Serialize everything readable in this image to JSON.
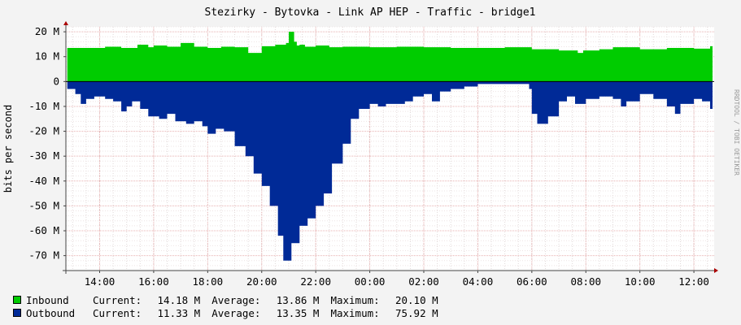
{
  "chart_data": {
    "type": "area",
    "title": "Stezirky - Bytovka - Link AP HEP - Traffic - bridge1",
    "ylabel": "bits per second",
    "watermark": "RRDTOOL / TOBI OETIKER",
    "ylim": [
      -76,
      22
    ],
    "yticks": [
      {
        "v": 20,
        "label": "20 M"
      },
      {
        "v": 10,
        "label": "10 M"
      },
      {
        "v": 0,
        "label": "0"
      },
      {
        "v": -10,
        "label": "-10 M"
      },
      {
        "v": -20,
        "label": "-20 M"
      },
      {
        "v": -30,
        "label": "-30 M"
      },
      {
        "v": -40,
        "label": "-40 M"
      },
      {
        "v": -50,
        "label": "-50 M"
      },
      {
        "v": -60,
        "label": "-60 M"
      },
      {
        "v": -70,
        "label": "-70 M"
      }
    ],
    "xlim": [
      12.75,
      36.75
    ],
    "xticks": [
      {
        "v": 14,
        "label": "14:00"
      },
      {
        "v": 16,
        "label": "16:00"
      },
      {
        "v": 18,
        "label": "18:00"
      },
      {
        "v": 20,
        "label": "20:00"
      },
      {
        "v": 22,
        "label": "22:00"
      },
      {
        "v": 24,
        "label": "00:00"
      },
      {
        "v": 26,
        "label": "02:00"
      },
      {
        "v": 28,
        "label": "04:00"
      },
      {
        "v": 30,
        "label": "06:00"
      },
      {
        "v": 32,
        "label": "08:00"
      },
      {
        "v": 34,
        "label": "10:00"
      },
      {
        "v": 36,
        "label": "12:00"
      }
    ],
    "series": [
      {
        "name": "Inbound",
        "color": "#00cc00",
        "x": [
          12.8,
          13.5,
          14.2,
          14.8,
          15.4,
          15.8,
          16.0,
          16.5,
          17.0,
          17.5,
          18.0,
          18.5,
          19.0,
          19.5,
          20.0,
          20.5,
          20.9,
          21.0,
          21.2,
          21.3,
          21.4,
          21.6,
          22.0,
          22.5,
          23.0,
          24.0,
          25.0,
          26.0,
          27.0,
          28.0,
          29.0,
          30.0,
          31.0,
          31.7,
          31.9,
          32.5,
          33.0,
          34.0,
          35.0,
          36.0,
          36.6
        ],
        "values": [
          13.5,
          13.5,
          14.0,
          13.5,
          14.8,
          13.8,
          14.5,
          14.0,
          15.5,
          14.0,
          13.5,
          14.0,
          13.8,
          11.5,
          14.2,
          14.8,
          15.5,
          20.0,
          16.0,
          14.5,
          14.8,
          14.0,
          14.5,
          13.8,
          14.0,
          13.8,
          14.0,
          13.8,
          13.5,
          13.5,
          13.8,
          13.0,
          12.5,
          11.5,
          12.5,
          13.0,
          13.8,
          13.0,
          13.5,
          13.2,
          14.2
        ]
      },
      {
        "name": "Outbound",
        "color": "#002a97",
        "x": [
          12.8,
          13.1,
          13.3,
          13.5,
          13.8,
          14.2,
          14.5,
          14.8,
          15.0,
          15.2,
          15.5,
          15.8,
          16.2,
          16.5,
          16.8,
          17.2,
          17.5,
          17.8,
          18.0,
          18.3,
          18.6,
          19.0,
          19.4,
          19.7,
          20.0,
          20.3,
          20.6,
          20.8,
          21.1,
          21.4,
          21.7,
          22.0,
          22.3,
          22.6,
          23.0,
          23.3,
          23.6,
          24.0,
          24.3,
          24.6,
          25.0,
          25.3,
          25.6,
          26.0,
          26.3,
          26.6,
          27.0,
          27.5,
          28.0,
          28.5,
          29.0,
          29.5,
          29.9,
          30.0,
          30.2,
          30.6,
          31.0,
          31.3,
          31.6,
          32.0,
          32.5,
          33.0,
          33.3,
          33.5,
          34.0,
          34.5,
          35.0,
          35.3,
          35.5,
          36.0,
          36.3,
          36.6
        ],
        "values": [
          -3,
          -5,
          -9,
          -7,
          -6,
          -7,
          -8,
          -12,
          -10,
          -8,
          -11,
          -14,
          -15,
          -13,
          -16,
          -17,
          -16,
          -18,
          -21,
          -19,
          -20,
          -26,
          -30,
          -37,
          -42,
          -50,
          -62,
          -72,
          -65,
          -58,
          -55,
          -50,
          -45,
          -33,
          -25,
          -15,
          -11,
          -9,
          -10,
          -9,
          -9,
          -8,
          -6,
          -5,
          -8,
          -4,
          -3,
          -2,
          -1,
          -1,
          -1,
          -1,
          -3,
          -13,
          -17,
          -14,
          -8,
          -6,
          -9,
          -7,
          -6,
          -7,
          -10,
          -8,
          -5,
          -7,
          -10,
          -13,
          -9,
          -7,
          -8,
          -11
        ]
      }
    ]
  },
  "legend": {
    "current_label": "Current:",
    "average_label": "Average:",
    "maximum_label": "Maximum:",
    "inbound": {
      "name": "Inbound",
      "color": "#00cc00",
      "current": "14.18 M",
      "average": "13.86 M",
      "maximum": "20.10 M"
    },
    "outbound": {
      "name": "Outbound",
      "color": "#002a97",
      "current": "11.33 M",
      "average": "13.35 M",
      "maximum": "75.92 M"
    }
  }
}
